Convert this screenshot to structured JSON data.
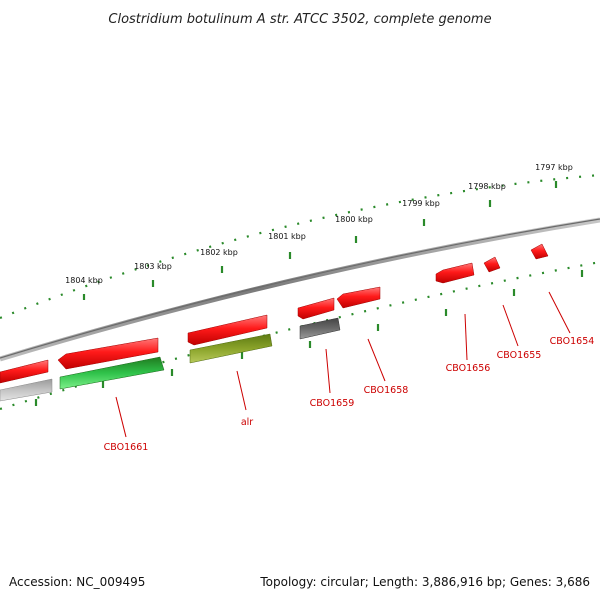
{
  "title": "Clostridium botulinum A str. ATCC 3502, complete genome",
  "ruler_labels": [
    "1804 kbp",
    "1803 kbp",
    "1802 kbp",
    "1801 kbp",
    "1800 kbp",
    "1799 kbp",
    "1798 kbp",
    "1797 kbp"
  ],
  "genes": [
    "CBO1661",
    "alr",
    "CBO1659",
    "CBO1658",
    "CBO1656",
    "CBO1655",
    "CBO1654"
  ],
  "footer": {
    "accession": "Accession: NC_009495",
    "summary": "Topology: circular; Length: 3,886,916 bp; Genes: 3,686"
  },
  "colors": {
    "forward_gene": "#ff2020",
    "reverse_gene_green": "#22bb33",
    "reverse_gene_olive": "#7f9a20",
    "reverse_gene_gray": "#666666",
    "backbone": "#8a8a8a",
    "ruler_ticks": "#2a8a2a",
    "gene_label": "#cc0000"
  }
}
